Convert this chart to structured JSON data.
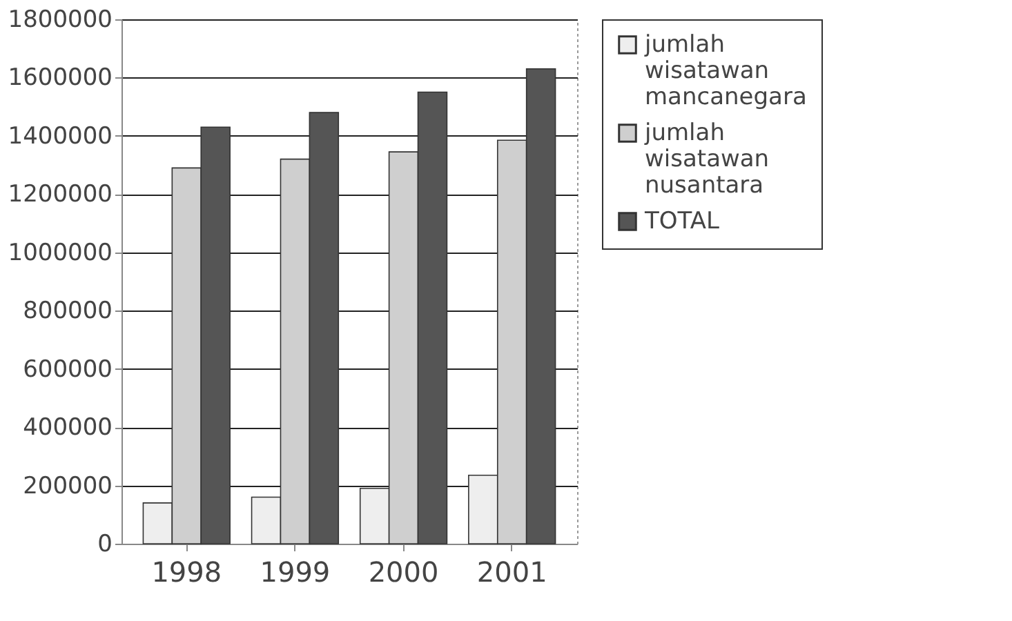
{
  "chart_data": {
    "type": "bar",
    "categories": [
      "1998",
      "1999",
      "2000",
      "2001"
    ],
    "series": [
      {
        "name": "jumlah wisatawan mancanegara",
        "color": "#eeeeee",
        "values": [
          140000,
          160000,
          190000,
          235000
        ]
      },
      {
        "name": "jumlah wisatawan nusantara",
        "color": "#cfcfcf",
        "values": [
          1290000,
          1320000,
          1345000,
          1385000
        ]
      },
      {
        "name": "TOTAL",
        "color": "#555555",
        "values": [
          1430000,
          1480000,
          1550000,
          1630000
        ]
      }
    ],
    "ylim": [
      0,
      1800000
    ],
    "yticks": [
      0,
      200000,
      400000,
      600000,
      800000,
      1000000,
      1200000,
      1400000,
      1600000,
      1800000
    ],
    "grid": "y",
    "legend": "right"
  }
}
